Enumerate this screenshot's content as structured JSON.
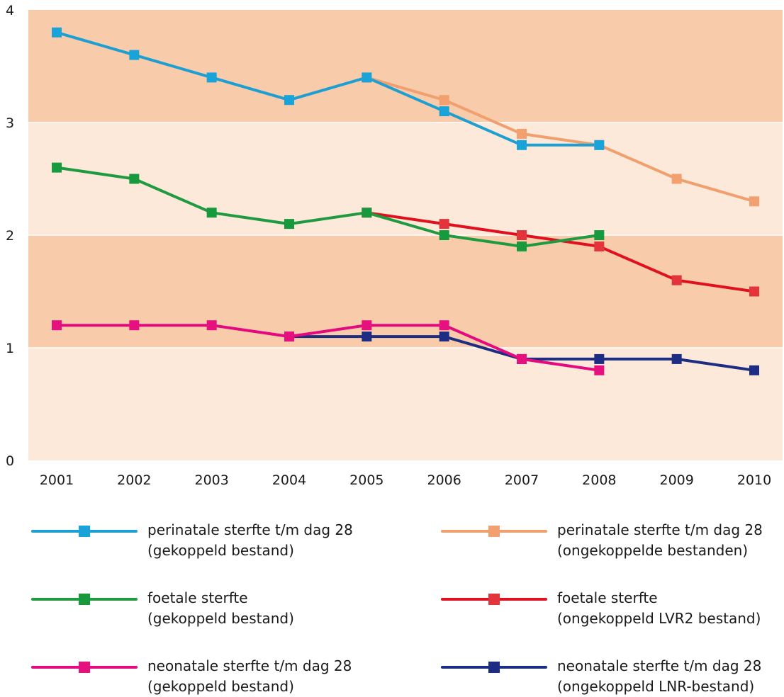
{
  "chart_data": {
    "type": "line",
    "title": "",
    "xlabel": "",
    "ylabel": "",
    "ylim": [
      0,
      4
    ],
    "y_ticks": [
      "0",
      "1",
      "2",
      "3",
      "4"
    ],
    "categories": [
      "2001",
      "2002",
      "2003",
      "2004",
      "2005",
      "2006",
      "2007",
      "2008",
      "2009",
      "2010"
    ],
    "grid": "horizontal bands",
    "band_colors": [
      "#fde9da",
      "#f8ccaa"
    ],
    "legend_placement": "bottom",
    "series": [
      {
        "id": "s1",
        "name_line1": "perinatale sterfte t/m dag 28",
        "name_line2": "(gekoppeld bestand)",
        "line_color": "#1e9fd2",
        "marker_color": "#1aa3d8",
        "values": [
          3.8,
          3.6,
          3.4,
          3.2,
          3.4,
          3.1,
          2.8,
          2.8,
          null,
          null
        ]
      },
      {
        "id": "s2",
        "name_line1": "perinatale sterfte t/m dag 28",
        "name_line2": "(ongekoppelde bestanden)",
        "line_color": "#f0a06e",
        "marker_color": "#f2a070",
        "values": [
          null,
          null,
          null,
          null,
          3.4,
          3.2,
          2.9,
          2.8,
          2.5,
          2.3
        ]
      },
      {
        "id": "s3",
        "name_line1": "foetale sterfte",
        "name_line2": "(gekoppeld bestand)",
        "line_color": "#1f9a40",
        "marker_color": "#179a3e",
        "values": [
          2.6,
          2.5,
          2.2,
          2.1,
          2.2,
          2.0,
          1.9,
          2.0,
          null,
          null
        ]
      },
      {
        "id": "s4",
        "name_line1": "foetale sterfte",
        "name_line2": "(ongekoppeld LVR2 bestand)",
        "line_color": "#e0101e",
        "marker_color": "#e3343c",
        "values": [
          null,
          null,
          null,
          null,
          2.2,
          2.1,
          2.0,
          1.9,
          1.6,
          1.5
        ]
      },
      {
        "id": "s5",
        "name_line1": "neonatale sterfte t/m dag 28",
        "name_line2": "(gekoppeld bestand)",
        "line_color": "#e4097e",
        "marker_color": "#e6117f",
        "values": [
          1.2,
          1.2,
          1.2,
          1.1,
          1.2,
          1.2,
          0.9,
          0.8,
          null,
          null
        ]
      },
      {
        "id": "s6",
        "name_line1": "neonatale sterfte t/m dag 28",
        "name_line2": "(ongekoppeld LNR-bestand)",
        "line_color": "#1c2d83",
        "marker_color": "#1c2d83",
        "values": [
          null,
          null,
          null,
          1.1,
          1.1,
          1.1,
          0.9,
          0.9,
          0.9,
          0.8
        ]
      }
    ]
  }
}
